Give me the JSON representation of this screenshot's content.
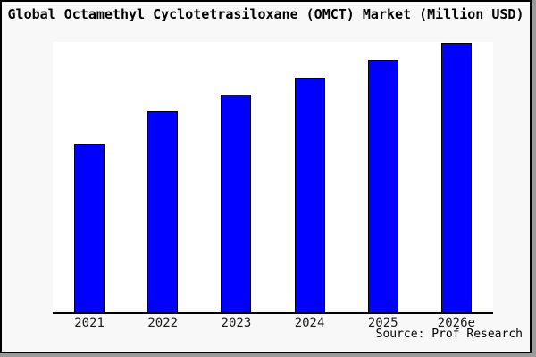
{
  "title": "Global Octamethyl Cyclotetrasiloxane (OMCT) Market (Million USD)",
  "source_note": "Source: Prof Research",
  "colors": {
    "bar_fill": "#0000ff",
    "bar_edge": "#000000",
    "frame_border": "#000000",
    "page_background": "#f8f8f8",
    "plot_background": "#ffffff",
    "shadow_edge": "#9b9b9b",
    "tick_label": "#1a1a1a"
  },
  "chart_data": {
    "type": "bar",
    "title": "Global Octamethyl Cyclotetrasiloxane (OMCT) Market (Million USD)",
    "categories": [
      "2021",
      "2022",
      "2023",
      "2024",
      "2025",
      "2026e"
    ],
    "values": [
      62.6,
      74.8,
      80.8,
      87.1,
      93.7,
      100
    ],
    "values_note": "relative index estimated from bar heights, 2026e = 100; absolute Million USD values are not labeled on the chart",
    "xlabel": "",
    "ylabel": "",
    "ylim": [
      0,
      100
    ],
    "y_axis_visible": false,
    "gridlines": false,
    "legend": false,
    "bar_count": 6
  }
}
